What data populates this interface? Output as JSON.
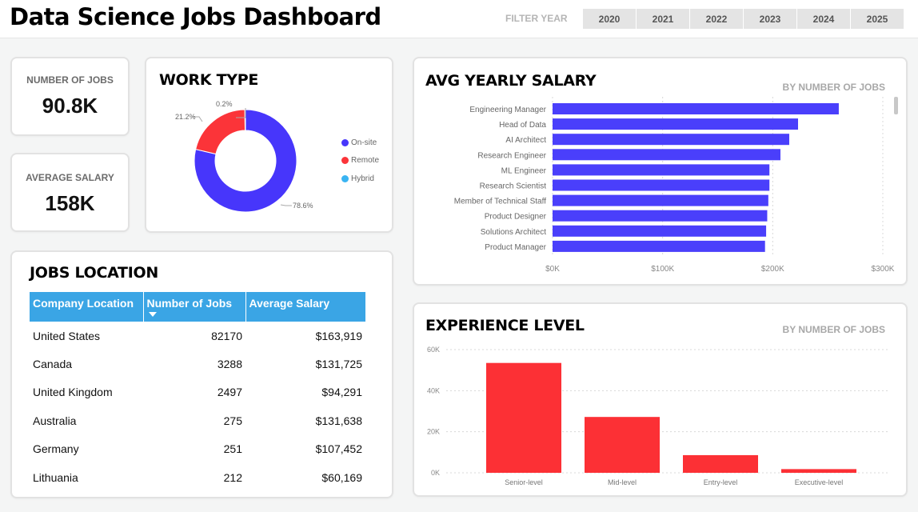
{
  "header": {
    "title": "Data Science Jobs Dashboard",
    "filter_label": "FILTER YEAR",
    "years": [
      "2020",
      "2021",
      "2022",
      "2023",
      "2024",
      "2025"
    ]
  },
  "kpis": {
    "jobs_label": "NUMBER OF JOBS",
    "jobs_value": "90.8K",
    "salary_label": "AVERAGE SALARY",
    "salary_value": "158K"
  },
  "work_type": {
    "title": "WORK TYPE",
    "legend": [
      "On-site",
      "Remote",
      "Hybrid"
    ],
    "labels": [
      "78.6%",
      "21.2%",
      "0.2%"
    ]
  },
  "salary_chart": {
    "title": "AVG YEARLY SALARY",
    "subtitle": "BY NUMBER OF JOBS"
  },
  "experience_chart": {
    "title": "EXPERIENCE LEVEL",
    "subtitle": "BY NUMBER OF JOBS"
  },
  "location": {
    "title": "JOBS LOCATION",
    "columns": [
      "Company Location",
      "Number of Jobs",
      "Average Salary"
    ],
    "rows": [
      {
        "country": "United States",
        "jobs": "82170",
        "salary": "$163,919"
      },
      {
        "country": "Canada",
        "jobs": "3288",
        "salary": "$131,725"
      },
      {
        "country": "United Kingdom",
        "jobs": "2497",
        "salary": "$94,291"
      },
      {
        "country": "Australia",
        "jobs": "275",
        "salary": "$131,638"
      },
      {
        "country": "Germany",
        "jobs": "251",
        "salary": "$107,452"
      },
      {
        "country": "Lithuania",
        "jobs": "212",
        "salary": "$60,169"
      }
    ]
  },
  "colors": {
    "onsite": "#4736fb",
    "remote": "#fb3439",
    "hybrid": "#3ab4f2",
    "bar_blue": "#4a3ffb",
    "bar_red": "#fc3035",
    "header_blue": "#3aa5e5"
  },
  "chart_data": [
    {
      "type": "pie",
      "title": "WORK TYPE",
      "categories": [
        "On-site",
        "Remote",
        "Hybrid"
      ],
      "values": [
        78.6,
        21.2,
        0.2
      ],
      "value_labels": [
        "78.6%",
        "21.2%",
        "0.2%"
      ]
    },
    {
      "type": "bar",
      "orientation": "horizontal",
      "title": "AVG YEARLY SALARY",
      "subtitle": "BY NUMBER OF JOBS",
      "categories": [
        "Engineering Manager",
        "Head of Data",
        "AI Architect",
        "Research Engineer",
        "ML Engineer",
        "Research Scientist",
        "Member of Technical Staff",
        "Product Designer",
        "Solutions Architect",
        "Product Manager"
      ],
      "values": [
        260000,
        223000,
        215000,
        207000,
        197000,
        197000,
        196000,
        195000,
        194000,
        193000
      ],
      "xlim": [
        0,
        300000
      ],
      "xticks": [
        "$0K",
        "$100K",
        "$200K",
        "$300K"
      ]
    },
    {
      "type": "bar",
      "title": "EXPERIENCE LEVEL",
      "subtitle": "BY NUMBER OF JOBS",
      "categories": [
        "Senior-level",
        "Mid-level",
        "Entry-level",
        "Executive-level"
      ],
      "values": [
        53500,
        27200,
        8600,
        1800
      ],
      "ylim": [
        0,
        60000
      ],
      "yticks": [
        "0K",
        "20K",
        "40K",
        "60K"
      ]
    }
  ]
}
